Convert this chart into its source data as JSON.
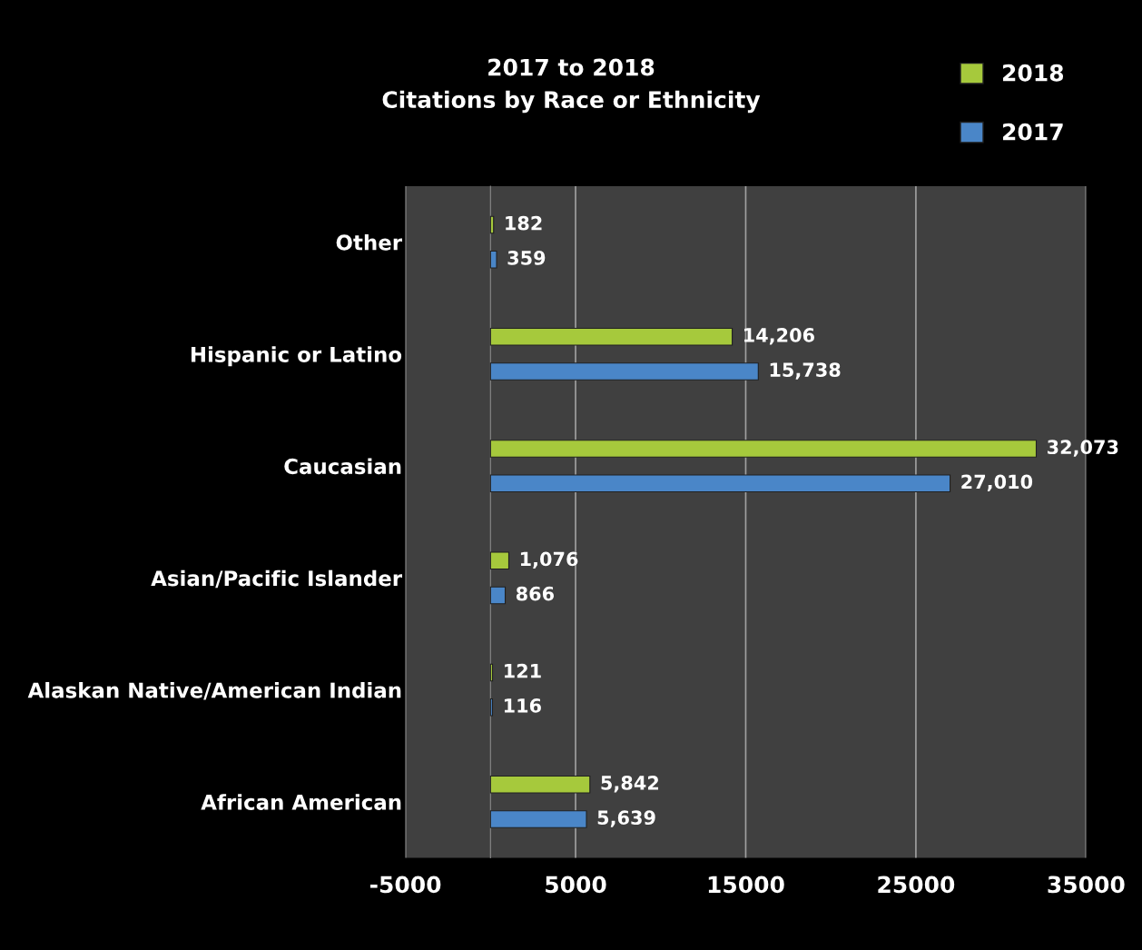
{
  "chart_data": {
    "type": "bar",
    "orientation": "horizontal",
    "title": "2017 to 2018\nCitations by Race or Ethnicity",
    "categories": [
      "Other",
      "Hispanic or Latino",
      "Caucasian",
      "Asian/Pacific Islander",
      "Alaskan Native/American Indian",
      "African American"
    ],
    "series": [
      {
        "name": "2018",
        "color": "#a6c93c",
        "values": [
          182,
          14206,
          32073,
          1076,
          121,
          5842
        ],
        "value_labels": [
          "182",
          "14,206",
          "32,073",
          "1,076",
          "121",
          "5,842"
        ]
      },
      {
        "name": "2017",
        "color": "#4a86c8",
        "values": [
          359,
          15738,
          27010,
          866,
          116,
          5639
        ],
        "value_labels": [
          "359",
          "15,738",
          "27,010",
          "866",
          "116",
          "5,639"
        ]
      }
    ],
    "xlim": [
      -5000,
      35000
    ],
    "xticks": [
      -5000,
      5000,
      15000,
      25000,
      35000
    ],
    "grid": "x",
    "legend": "top right"
  }
}
